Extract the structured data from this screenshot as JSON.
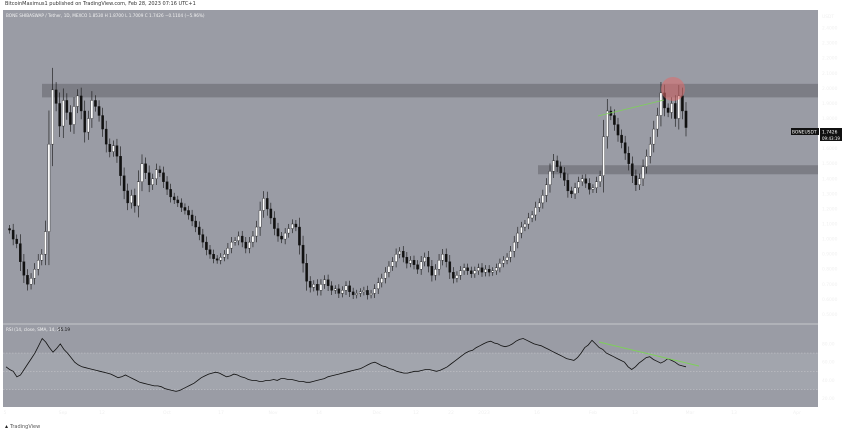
{
  "header": {
    "published_text": "BitcoinMaximus1 published on TradingView.com, Feb 28, 2023 07:16 UTC+1"
  },
  "footer": {
    "brand_icon": "tradingview-logo-icon",
    "brand_text": "TradingView"
  },
  "colors": {
    "background": "#9a9ca5",
    "panel_separator": "#c7c8cc",
    "resistance_zone": "#6f7078",
    "up_candle": "#ffffff",
    "down_candle": "#111111",
    "divergence_line": "#7ecf5b",
    "rejection_circle": "#e06b6b",
    "rsi_line": "#111111"
  },
  "main_pane": {
    "symbol_line": "BONE SHIBASWAP / Tether, 1D, MEXC",
    "ohlc": [
      {
        "label": "O",
        "value": "1.8530"
      },
      {
        "label": "H",
        "value": "1.8700"
      },
      {
        "label": "L",
        "value": "1.7009"
      },
      {
        "label": "C",
        "value": "1.7426"
      }
    ],
    "change": "−0.1104 (−5.96%)",
    "currency": "USDT",
    "price_label_symbol": "BONEUSDT",
    "price_label_value": "1.7426",
    "price_label_countdown": "09:43:19"
  },
  "rsi_pane": {
    "label": "RSI (14, close, SMA, 14, 2)",
    "value": "55.19"
  },
  "chart_data": [
    {
      "type": "candlestick",
      "title": "BONE SHIBASWAP / Tether, 1D, MEXC",
      "currency": "USDT",
      "ylim": [
        0.45,
        2.5
      ],
      "y_ticks": [
        "2.4000",
        "2.3000",
        "2.2000",
        "2.1000",
        "2.0000",
        "1.9000",
        "1.8000",
        "1.7000",
        "1.6000",
        "1.5000",
        "1.4000",
        "1.3000",
        "1.2000",
        "1.1000",
        "1.0000",
        "0.9000",
        "0.8000",
        "0.7000",
        "0.6000",
        "0.5000"
      ],
      "x_ticks": [
        "5",
        "Sep",
        "12",
        "Oct",
        "17",
        "Nov",
        "14",
        "Dec",
        "12",
        "22",
        "2023",
        "16",
        "Feb",
        "13",
        "Mar",
        "13",
        "Apr"
      ],
      "close_path": [
        1.07,
        1.06,
        1.0,
        0.97,
        0.85,
        0.76,
        0.7,
        0.74,
        0.8,
        0.86,
        0.9,
        1.05,
        1.63,
        1.99,
        1.9,
        1.75,
        1.92,
        1.84,
        1.76,
        1.88,
        1.95,
        1.85,
        1.71,
        1.8,
        1.92,
        1.88,
        1.82,
        1.73,
        1.63,
        1.58,
        1.62,
        1.55,
        1.42,
        1.32,
        1.24,
        1.29,
        1.22,
        1.38,
        1.5,
        1.44,
        1.36,
        1.4,
        1.46,
        1.44,
        1.38,
        1.33,
        1.28,
        1.26,
        1.24,
        1.21,
        1.19,
        1.16,
        1.12,
        1.08,
        1.03,
        0.98,
        0.93,
        0.9,
        0.87,
        0.86,
        0.88,
        0.9,
        0.94,
        0.98,
        0.99,
        1.02,
        0.98,
        0.94,
        0.98,
        1.02,
        1.08,
        1.19,
        1.27,
        1.2,
        1.14,
        1.07,
        1.02,
        1.0,
        1.04,
        1.07,
        1.1,
        1.08,
        0.96,
        0.84,
        0.72,
        0.68,
        0.7,
        0.66,
        0.7,
        0.73,
        0.69,
        0.66,
        0.67,
        0.64,
        0.66,
        0.69,
        0.65,
        0.63,
        0.64,
        0.65,
        0.66,
        0.63,
        0.64,
        0.67,
        0.71,
        0.74,
        0.78,
        0.82,
        0.85,
        0.9,
        0.92,
        0.88,
        0.84,
        0.86,
        0.83,
        0.8,
        0.85,
        0.88,
        0.82,
        0.76,
        0.8,
        0.86,
        0.9,
        0.85,
        0.78,
        0.74,
        0.76,
        0.79,
        0.81,
        0.79,
        0.77,
        0.79,
        0.81,
        0.78,
        0.8,
        0.78,
        0.79,
        0.81,
        0.84,
        0.86,
        0.88,
        0.92,
        0.98,
        1.04,
        1.08,
        1.1,
        1.14,
        1.16,
        1.21,
        1.24,
        1.29,
        1.36,
        1.45,
        1.52,
        1.48,
        1.44,
        1.39,
        1.32,
        1.3,
        1.34,
        1.38,
        1.4,
        1.37,
        1.33,
        1.34,
        1.38,
        1.42,
        1.68,
        1.85,
        1.82,
        1.76,
        1.69,
        1.64,
        1.57,
        1.5,
        1.42,
        1.36,
        1.4,
        1.48,
        1.55,
        1.63,
        1.73,
        1.82,
        1.97,
        1.87,
        1.84,
        1.9,
        1.8,
        1.95,
        1.85,
        1.74
      ],
      "resistance_zone": [
        1.94,
        2.03
      ],
      "support_zone": [
        1.43,
        1.49
      ],
      "annotations": [
        "green divergence line across recent highs",
        "red circle at 2.10 rejection"
      ]
    },
    {
      "type": "line",
      "title": "RSI (14, close, SMA, 14, 2)",
      "ylim": [
        12,
        92
      ],
      "y_ticks": [
        "80.00",
        "60.00",
        "40.00",
        "20.00"
      ],
      "band": [
        30,
        70
      ],
      "mid_line": 50,
      "values": [
        55,
        52,
        50,
        44,
        46,
        52,
        58,
        64,
        70,
        78,
        86,
        82,
        76,
        71,
        75,
        80,
        74,
        70,
        65,
        60,
        57,
        55,
        54,
        53,
        52,
        51,
        50,
        49,
        48,
        47,
        45,
        43,
        44,
        46,
        44,
        42,
        40,
        38,
        37,
        36,
        35,
        34,
        34,
        33,
        31,
        30,
        29,
        28,
        29,
        31,
        33,
        35,
        37,
        40,
        43,
        45,
        47,
        48,
        49,
        48,
        46,
        44,
        45,
        47,
        46,
        44,
        43,
        41,
        40,
        40,
        39,
        39,
        40,
        40,
        41,
        40,
        42,
        42,
        41,
        41,
        40,
        39,
        39,
        38,
        38,
        39,
        40,
        41,
        42,
        44,
        45,
        46,
        47,
        48,
        49,
        50,
        51,
        52,
        53,
        55,
        57,
        59,
        60,
        58,
        56,
        55,
        53,
        52,
        50,
        49,
        48,
        48,
        49,
        50,
        50,
        51,
        52,
        52,
        51,
        50,
        51,
        53,
        55,
        58,
        61,
        64,
        67,
        70,
        72,
        73,
        76,
        78,
        80,
        82,
        83,
        81,
        80,
        78,
        77,
        78,
        80,
        83,
        85,
        86,
        84,
        82,
        80,
        79,
        78,
        76,
        74,
        72,
        70,
        68,
        66,
        64,
        63,
        62,
        65,
        70,
        76,
        79,
        84,
        80,
        76,
        74,
        70,
        68,
        66,
        64,
        62,
        60,
        55,
        52,
        55,
        59,
        62,
        65,
        66,
        63,
        61,
        59,
        61,
        64,
        62,
        60,
        57,
        56,
        55
      ]
    }
  ]
}
